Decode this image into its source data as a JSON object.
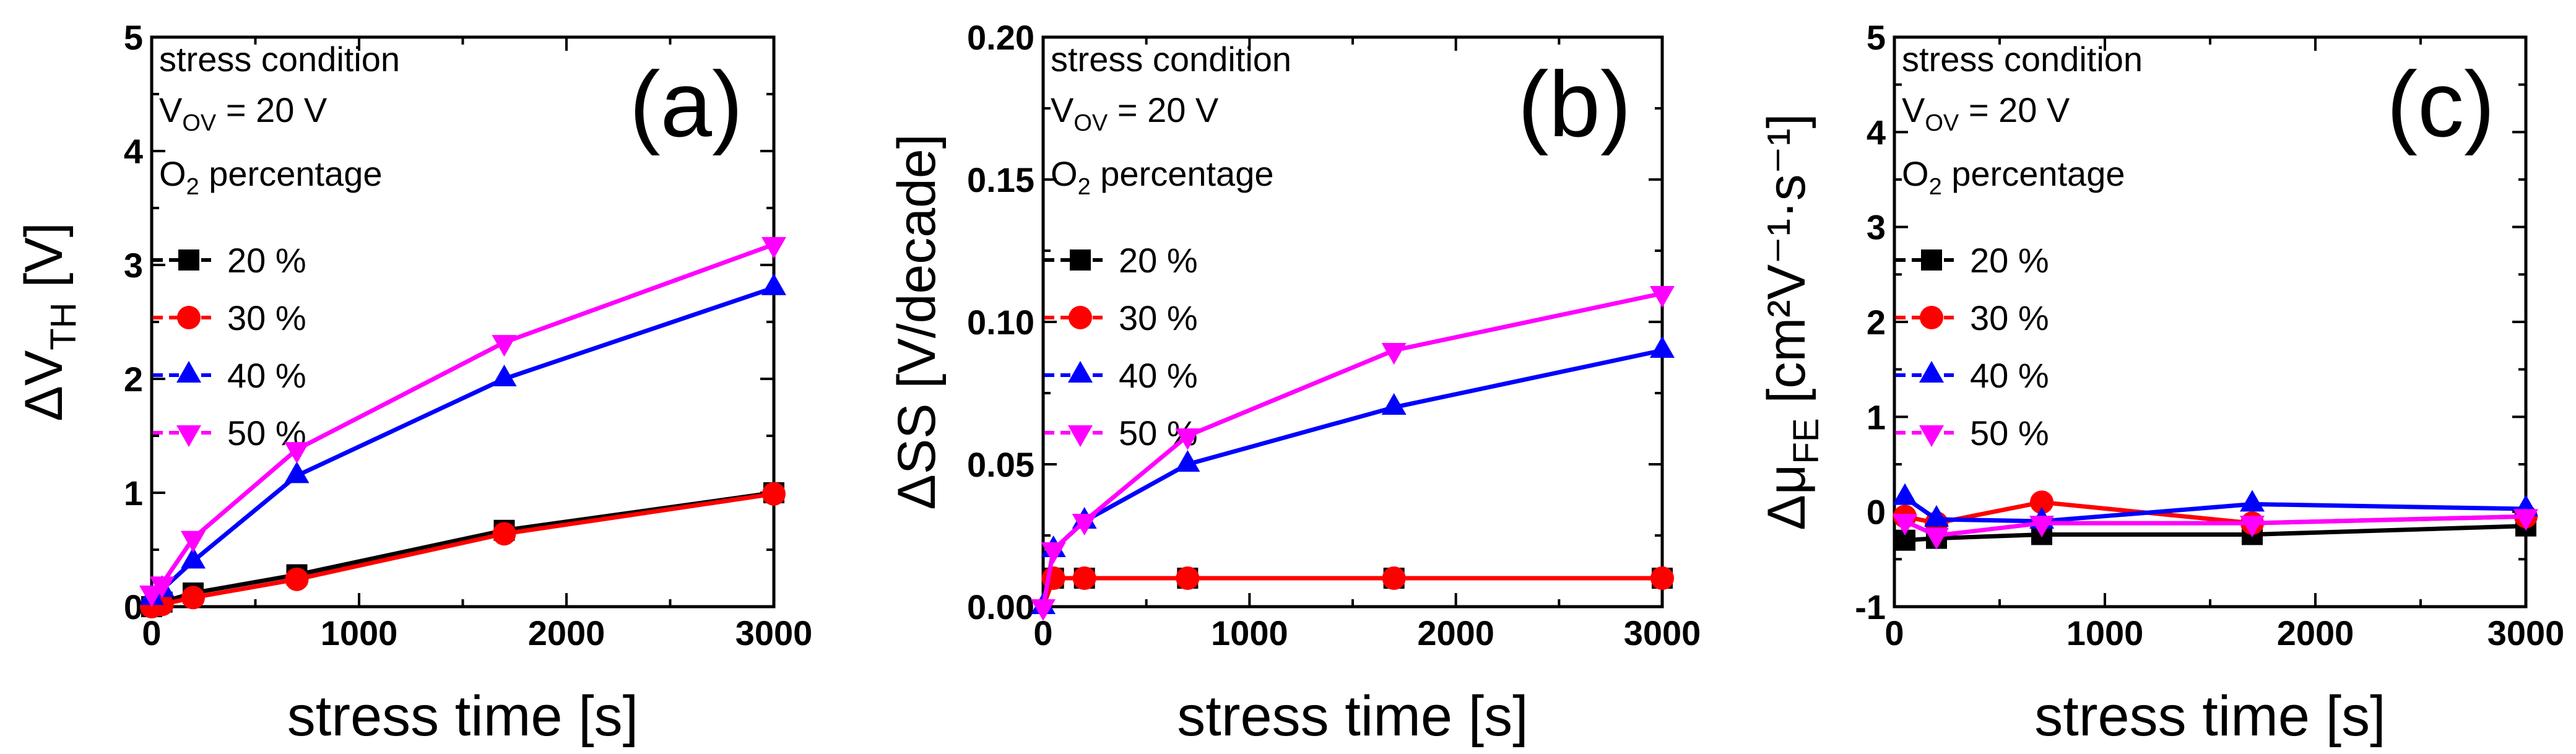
{
  "colors": {
    "20 %": "#000000",
    "30 %": "#ff0000",
    "40 %": "#0000ff",
    "50 %": "#ff00ff"
  },
  "annotation": {
    "line1": "stress condition",
    "vov_main": "V",
    "vov_sub": "OV",
    "vov_rest": " = 20 V",
    "o2_main": "O",
    "o2_sub": "2",
    "o2_rest": " percentage"
  },
  "chart_data": [
    {
      "type": "line",
      "panel_label": "(a)",
      "title": "",
      "xlabel": "stress time [s]",
      "ylabel": {
        "pre": "ΔV",
        "sub": "TH",
        "post": " [V]"
      },
      "xlim": [
        0,
        3000
      ],
      "ylim": [
        0,
        5
      ],
      "xticks": [
        0,
        1000,
        2000,
        3000
      ],
      "yticks": [
        0,
        1,
        2,
        3,
        4,
        5
      ],
      "ytick_labels": [
        "0",
        "1",
        "2",
        "3",
        "4",
        "5"
      ],
      "x": [
        0,
        50,
        200,
        700,
        1700,
        3000
      ],
      "series": [
        {
          "name": "20 %",
          "marker": "square",
          "values": [
            0,
            0.04,
            0.12,
            0.28,
            0.67,
            1.0
          ]
        },
        {
          "name": "30 %",
          "marker": "circle",
          "values": [
            0,
            0.02,
            0.08,
            0.24,
            0.64,
            0.99
          ]
        },
        {
          "name": "40 %",
          "marker": "triangle-up",
          "values": [
            0.08,
            0.15,
            0.4,
            1.15,
            2.0,
            2.8
          ]
        },
        {
          "name": "50 %",
          "marker": "triangle-down",
          "values": [
            0.12,
            0.2,
            0.6,
            1.38,
            2.32,
            3.18
          ]
        }
      ]
    },
    {
      "type": "line",
      "panel_label": "(b)",
      "title": "",
      "xlabel": "stress time [s]",
      "ylabel": {
        "pre": "ΔSS [V/decade]",
        "sub": "",
        "post": ""
      },
      "xlim": [
        0,
        3000
      ],
      "ylim": [
        0,
        0.2
      ],
      "xticks": [
        0,
        1000,
        2000,
        3000
      ],
      "yticks": [
        0,
        0.05,
        0.1,
        0.15,
        0.2
      ],
      "ytick_labels": [
        "0.00",
        "0.05",
        "0.10",
        "0.15",
        "0.20"
      ],
      "x": [
        0,
        50,
        200,
        700,
        1700,
        3000
      ],
      "series": [
        {
          "name": "20 %",
          "marker": "square",
          "values": [
            0,
            0.01,
            0.01,
            0.01,
            0.01,
            0.01
          ]
        },
        {
          "name": "30 %",
          "marker": "circle",
          "values": [
            0,
            0.01,
            0.01,
            0.01,
            0.01,
            0.01
          ]
        },
        {
          "name": "40 %",
          "marker": "triangle-up",
          "values": [
            0,
            0.02,
            0.03,
            0.05,
            0.07,
            0.09
          ]
        },
        {
          "name": "50 %",
          "marker": "triangle-down",
          "values": [
            0,
            0.02,
            0.03,
            0.06,
            0.09,
            0.11
          ]
        }
      ]
    },
    {
      "type": "line",
      "panel_label": "(c)",
      "title": "",
      "xlabel": "stress time [s]",
      "ylabel": {
        "pre": "Δμ",
        "sub": "FE",
        "post": " [cm²V⁻¹·s⁻¹]"
      },
      "xlim": [
        0,
        3000
      ],
      "ylim": [
        -1,
        5
      ],
      "xticks": [
        0,
        1000,
        2000,
        3000
      ],
      "yticks": [
        -1,
        0,
        1,
        2,
        3,
        4,
        5
      ],
      "ytick_labels": [
        "-1",
        "0",
        "1",
        "2",
        "3",
        "4",
        "5"
      ],
      "x": [
        50,
        200,
        700,
        1700,
        3000
      ],
      "series": [
        {
          "name": "20 %",
          "marker": "square",
          "values": [
            -0.3,
            -0.28,
            -0.24,
            -0.24,
            -0.15
          ]
        },
        {
          "name": "30 %",
          "marker": "circle",
          "values": [
            -0.05,
            -0.12,
            0.1,
            -0.12,
            -0.05
          ]
        },
        {
          "name": "40 %",
          "marker": "triangle-up",
          "values": [
            0.15,
            -0.08,
            -0.1,
            0.08,
            0.03
          ]
        },
        {
          "name": "50 %",
          "marker": "triangle-down",
          "values": [
            -0.1,
            -0.25,
            -0.12,
            -0.12,
            -0.05
          ]
        }
      ]
    }
  ]
}
